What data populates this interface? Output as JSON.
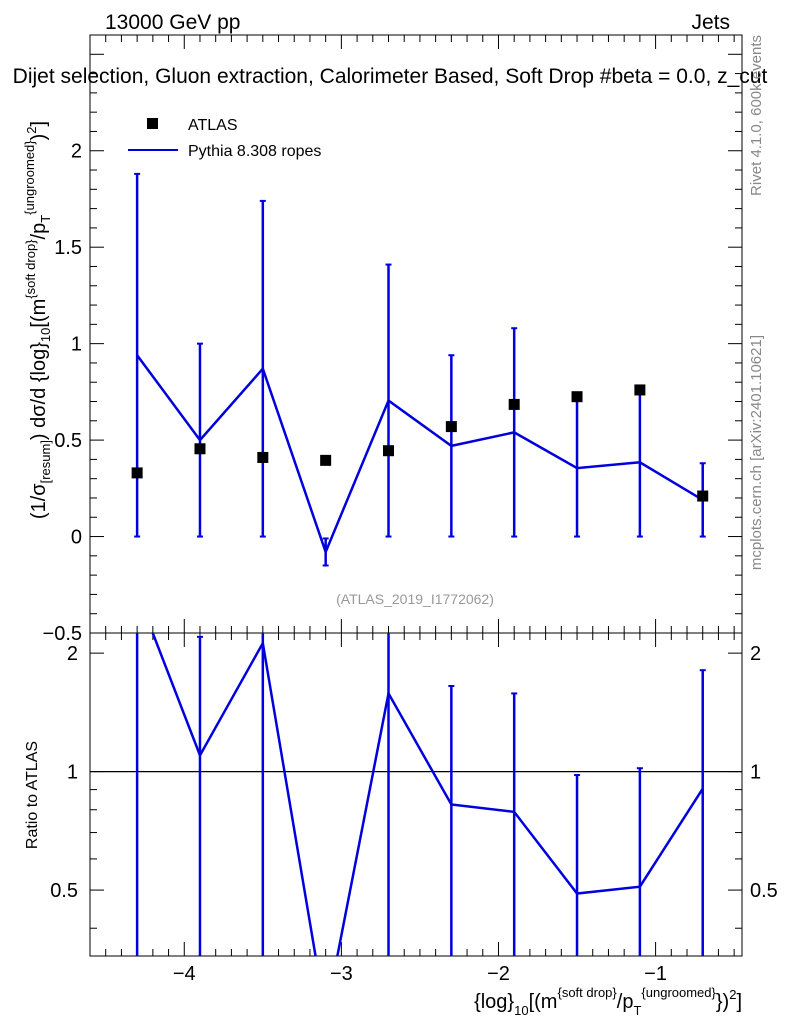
{
  "header": {
    "left": "13000 GeV pp",
    "right": "Jets"
  },
  "chart_data": [
    {
      "type": "scatter",
      "title": "Dijet selection, Gluon extraction, Calorimeter Based, Soft Drop #beta = 0.0, z_cut",
      "xlabel": "{log}_10[(m^{soft drop}/p_T^{ungroomed})^2]",
      "ylabel": "(1/σ_{resum}) dσ/d {log}_10[(m^{soft drop}/p_T^{ungroomed})^2]",
      "xlim": [
        -4.6,
        -0.45
      ],
      "ylim": [
        -0.5,
        2.6
      ],
      "xticks": [
        "−4",
        "−3",
        "−2",
        "−1"
      ],
      "yticks": [
        "−0.5",
        "0",
        "0.5",
        "1",
        "1.5",
        "2"
      ],
      "series": [
        {
          "name": "ATLAS",
          "marker": "square",
          "color": "#000000",
          "x": [
            -4.3,
            -3.9,
            -3.5,
            -3.1,
            -2.7,
            -2.3,
            -1.9,
            -1.5,
            -1.1,
            -0.7
          ],
          "y": [
            0.33,
            0.455,
            0.41,
            0.395,
            0.445,
            0.57,
            0.685,
            0.725,
            0.76,
            0.21
          ]
        },
        {
          "name": "Pythia 8.308 ropes",
          "marker": "line",
          "color": "#0000dd",
          "x": [
            -4.3,
            -3.9,
            -3.5,
            -3.1,
            -2.7,
            -2.3,
            -1.9,
            -1.5,
            -1.1,
            -0.7
          ],
          "y": [
            0.94,
            0.5,
            0.87,
            -0.08,
            0.705,
            0.47,
            0.54,
            0.355,
            0.385,
            0.19
          ],
          "err_low": [
            0.94,
            0.5,
            0.87,
            0.07,
            0.705,
            0.47,
            0.54,
            0.355,
            0.385,
            0.19
          ],
          "err_high": [
            0.94,
            0.5,
            0.87,
            0.07,
            0.705,
            0.47,
            0.54,
            0.355,
            0.385,
            0.19
          ]
        }
      ],
      "annotation": "(ATLAS_2019_I1772062)",
      "legend": "top-left",
      "side_texts": [
        "Rivet 4.1.0,  600k events",
        "mcplots.cern.ch [arXiv:2401.10621]"
      ]
    },
    {
      "type": "line",
      "xlabel": "{log}_10[(m^{soft drop}/p_T^{ungroomed})^2]",
      "ylabel": "Ratio to ATLAS",
      "xlim": [
        -4.6,
        -0.45
      ],
      "ylim": [
        0.34,
        2.25
      ],
      "yticks": [
        "0.5",
        "1",
        "2"
      ],
      "reference_line": 1,
      "series": [
        {
          "name": "Pythia 8.308 ropes",
          "color": "#0000dd",
          "x": [
            -4.3,
            -3.9,
            -3.5,
            -3.1,
            -2.7,
            -2.3,
            -1.9,
            -1.5,
            -1.1,
            -0.7
          ],
          "y": [
            2.85,
            1.1,
            2.12,
            -0.2,
            1.58,
            0.825,
            0.79,
            0.49,
            0.51,
            0.905
          ],
          "err_low": [
            2.85,
            1.1,
            2.12,
            0.18,
            1.58,
            0.825,
            0.79,
            0.49,
            0.51,
            0.905
          ],
          "err_high": [
            2.85,
            1.1,
            2.12,
            0.18,
            1.58,
            0.825,
            0.79,
            0.49,
            0.51,
            0.905
          ]
        }
      ]
    }
  ]
}
